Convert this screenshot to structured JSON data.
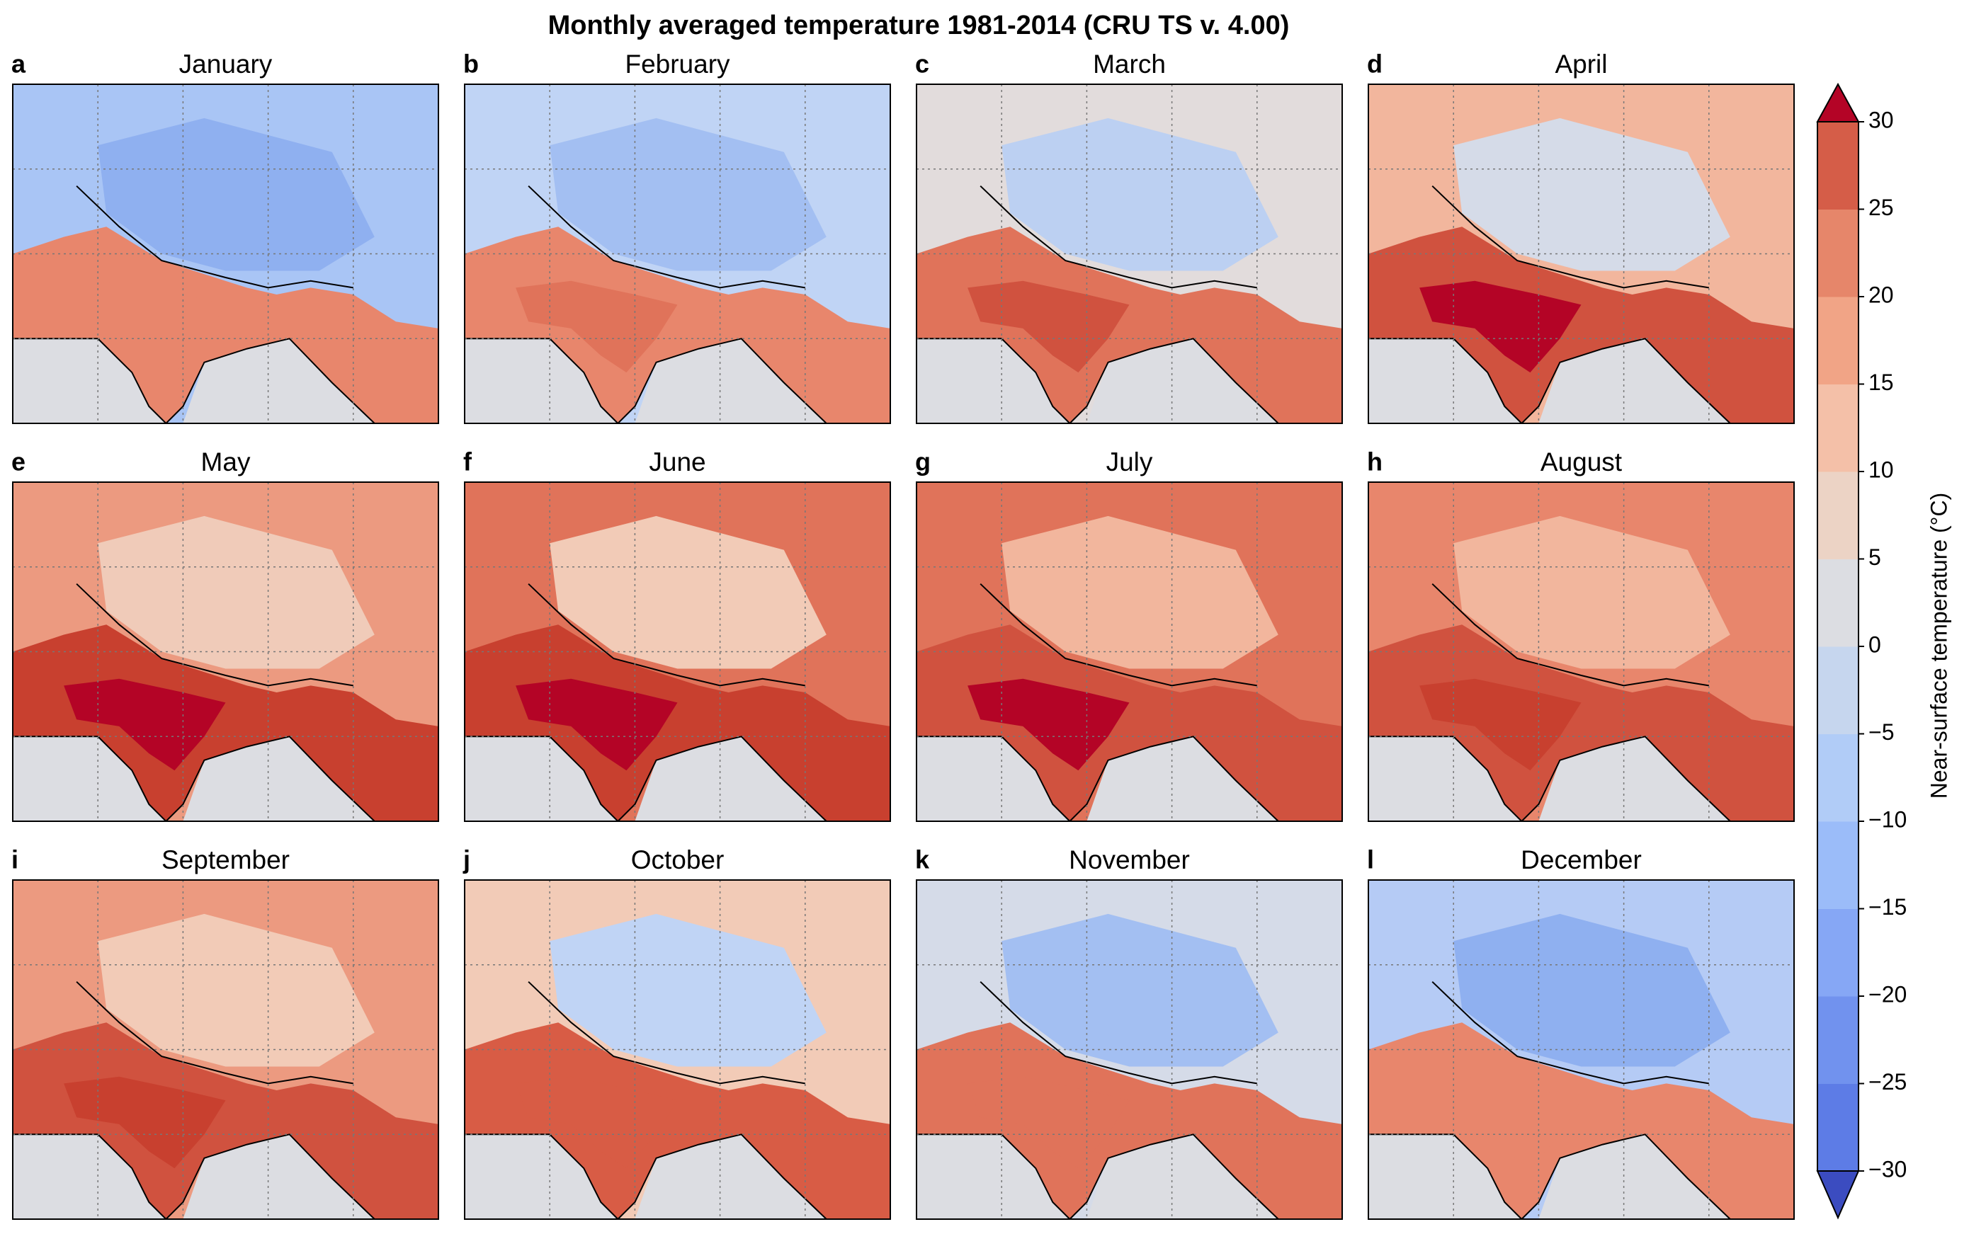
{
  "title": "Monthly averaged temperature 1981-2014 (CRU TS v. 4.00)",
  "panels": [
    {
      "letter": "a",
      "title": "January",
      "colors": {
        "north": "#a9c5f5",
        "plateau": "#8fb0f0",
        "lowland": "#e8866c",
        "core": "#e8866c"
      }
    },
    {
      "letter": "b",
      "title": "February",
      "colors": {
        "north": "#c0d4f5",
        "plateau": "#a3bff2",
        "lowland": "#e8866c",
        "core": "#e0735a"
      }
    },
    {
      "letter": "c",
      "title": "March",
      "colors": {
        "north": "#e2dcdc",
        "plateau": "#bcd0f2",
        "lowland": "#e0735a",
        "core": "#d0523f"
      }
    },
    {
      "letter": "d",
      "title": "April",
      "colors": {
        "north": "#f2b69d",
        "plateau": "#d5dbe8",
        "lowland": "#d0523f",
        "core": "#b40426"
      }
    },
    {
      "letter": "e",
      "title": "May",
      "colors": {
        "north": "#ec9a80",
        "plateau": "#f0cbb9",
        "lowland": "#c8402f",
        "core": "#b40426"
      }
    },
    {
      "letter": "f",
      "title": "June",
      "colors": {
        "north": "#e0735a",
        "plateau": "#f2cbb7",
        "lowland": "#c8402f",
        "core": "#b40426"
      }
    },
    {
      "letter": "g",
      "title": "July",
      "colors": {
        "north": "#e0735a",
        "plateau": "#f2b69d",
        "lowland": "#d0523f",
        "core": "#b40426"
      }
    },
    {
      "letter": "h",
      "title": "August",
      "colors": {
        "north": "#e8866c",
        "plateau": "#f2b69d",
        "lowland": "#d0523f",
        "core": "#c8402f"
      }
    },
    {
      "letter": "i",
      "title": "September",
      "colors": {
        "north": "#ec9a80",
        "plateau": "#f2cbb7",
        "lowland": "#d0523f",
        "core": "#c8402f"
      }
    },
    {
      "letter": "j",
      "title": "October",
      "colors": {
        "north": "#f2cbb7",
        "plateau": "#c0d4f5",
        "lowland": "#d85c45",
        "core": "#d85c45"
      }
    },
    {
      "letter": "k",
      "title": "November",
      "colors": {
        "north": "#d5dbe8",
        "plateau": "#a3bff2",
        "lowland": "#e0735a",
        "core": "#e0735a"
      }
    },
    {
      "letter": "l",
      "title": "December",
      "colors": {
        "north": "#b5cbf5",
        "plateau": "#8fb0f0",
        "lowland": "#e8866c",
        "core": "#e8866c"
      }
    }
  ],
  "colorbar": {
    "label": "Near-surface temperature (°C)",
    "lim": [
      -30,
      30
    ],
    "ticks": [
      {
        "value": -30,
        "label": "−30"
      },
      {
        "value": -25,
        "label": "−25"
      },
      {
        "value": -20,
        "label": "−20"
      },
      {
        "value": -15,
        "label": "−15"
      },
      {
        "value": -10,
        "label": "−10"
      },
      {
        "value": -5,
        "label": "−5"
      },
      0,
      5,
      10,
      15,
      20,
      25,
      30
    ],
    "colors": [
      "#5d7ce6",
      "#7192ee",
      "#86a7f5",
      "#9bbcf9",
      "#b1ccf7",
      "#c6d6ee",
      "#dcdde2",
      "#ecd3c5",
      "#f4c0a8",
      "#f1a486",
      "#e6866a",
      "#d55d48"
    ],
    "under_color": "#3b4cc0",
    "over_color": "#b40426"
  }
}
